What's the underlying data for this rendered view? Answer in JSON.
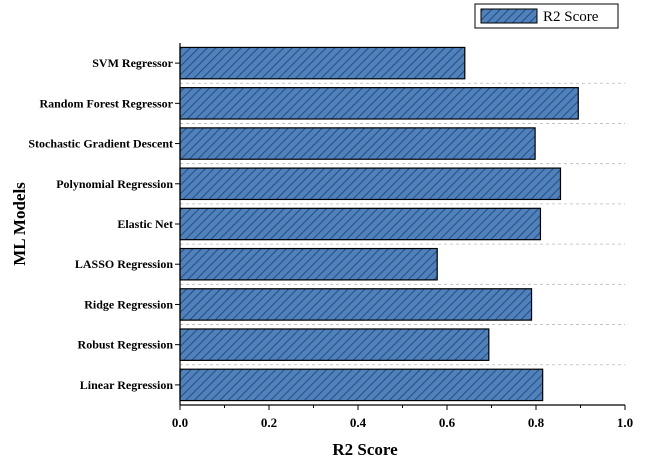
{
  "chart_data": {
    "type": "bar",
    "orientation": "horizontal",
    "title": "",
    "xlabel": "R2 Score",
    "ylabel": "ML Models",
    "xlim": [
      0,
      1.0
    ],
    "xticks": [
      "0.0",
      "0.2",
      "0.4",
      "0.6",
      "0.8",
      "1.0"
    ],
    "grid": true,
    "legend_position": "top-right",
    "categories": [
      "SVM Regressor",
      "Random Forest Regressor",
      "Stochastic Gradient Descent",
      "Polynomial Regression",
      "Elastic Net",
      "LASSO Regression",
      "Ridge Regression",
      "Robust Regression",
      "Linear Regression"
    ],
    "series": [
      {
        "name": "R2 Score",
        "values": [
          0.64,
          0.895,
          0.798,
          0.855,
          0.81,
          0.578,
          0.79,
          0.694,
          0.815
        ]
      }
    ],
    "colors": {
      "bar_fill": "#4f81bd",
      "hatch": "#1f3f6a",
      "bar_stroke": "#000000"
    }
  }
}
